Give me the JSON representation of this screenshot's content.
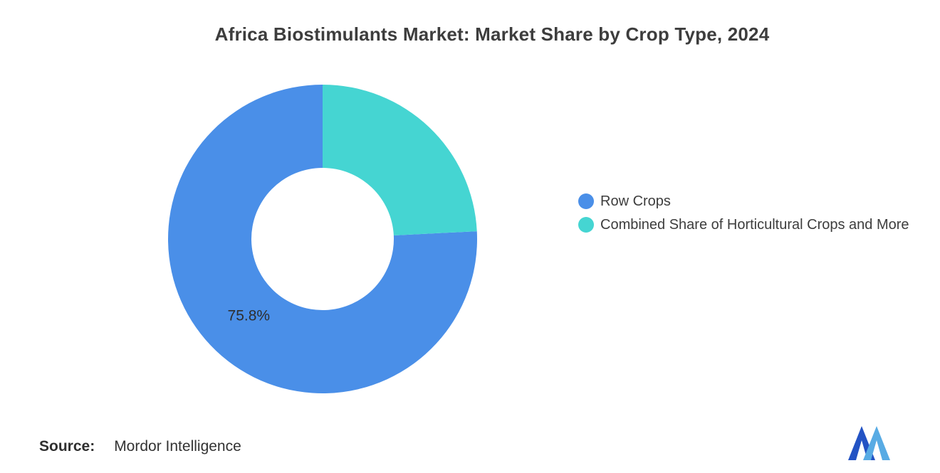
{
  "title": "Africa Biostimulants Market: Market Share by Crop Type, 2024",
  "chart_data": {
    "type": "pie",
    "subtype": "donut",
    "title": "Africa Biostimulants Market: Market Share by Crop Type, 2024",
    "legend_position": "right",
    "grid": false,
    "inner_radius_ratio": 0.46,
    "slices": [
      {
        "name": "Row Crops",
        "value": 75.8,
        "label": "75.8%",
        "color": "#4A8FE8"
      },
      {
        "name": "Combined Share of Horticultural Crops and More",
        "value": 24.2,
        "label": "",
        "color": "#45D5D2"
      }
    ],
    "label_color": "#2e2e2e"
  },
  "source": {
    "label": "Source:",
    "value": "Mordor Intelligence"
  },
  "logo": {
    "color_dark": "#2353C4",
    "color_light": "#58ABE4"
  }
}
